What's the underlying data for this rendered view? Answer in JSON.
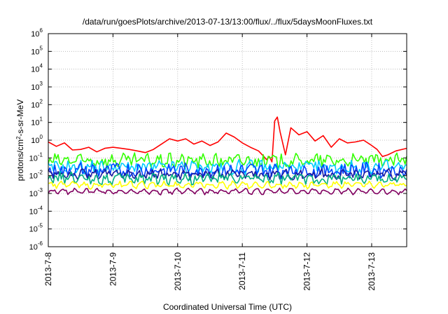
{
  "chart_data": {
    "type": "line",
    "title": "/data/run/goesPlots/archive/2013-07-13/13:00/flux/../flux/5daysMoonFluxes.txt",
    "xlabel": "Coordinated Universal Time (UTC)",
    "ylabel": {
      "base": "protons/cm",
      "exp": "2",
      "rest": "-s-sr-MeV"
    },
    "y_scale": "log",
    "ylim": [
      1e-06,
      1000000.0
    ],
    "xlim": [
      "2013-07-08",
      "2013-07-13 13:00"
    ],
    "x_ticks": [
      "2013-7-8",
      "2013-7-9",
      "2013-7-10",
      "2013-7-11",
      "2013-7-12",
      "2013-7-13"
    ],
    "y_ticks": [
      {
        "base": "10",
        "exp": "-6"
      },
      {
        "base": "10",
        "exp": "-5"
      },
      {
        "base": "10",
        "exp": "-4"
      },
      {
        "base": "10",
        "exp": "-3"
      },
      {
        "base": "10",
        "exp": "-2"
      },
      {
        "base": "10",
        "exp": "-1"
      },
      {
        "base": "10",
        "exp": "0"
      },
      {
        "base": "10",
        "exp": "1"
      },
      {
        "base": "10",
        "exp": "2"
      },
      {
        "base": "10",
        "exp": "3"
      },
      {
        "base": "10",
        "exp": "4"
      },
      {
        "base": "10",
        "exp": "5"
      },
      {
        "base": "10",
        "exp": "6"
      }
    ],
    "grid": true,
    "legend": "none",
    "series": [
      {
        "color": "#ff0000",
        "points": [
          [
            "2013-07-08 00:00",
            0.8
          ],
          [
            "2013-07-08 03:00",
            0.45
          ],
          [
            "2013-07-08 06:00",
            0.7
          ],
          [
            "2013-07-08 09:00",
            0.28
          ],
          [
            "2013-07-08 12:00",
            0.3
          ],
          [
            "2013-07-08 15:00",
            0.4
          ],
          [
            "2013-07-08 18:00",
            0.22
          ],
          [
            "2013-07-08 21:00",
            0.35
          ],
          [
            "2013-07-09 00:00",
            0.4
          ],
          [
            "2013-07-09 03:00",
            0.35
          ],
          [
            "2013-07-09 06:00",
            0.3
          ],
          [
            "2013-07-09 09:00",
            0.25
          ],
          [
            "2013-07-09 12:00",
            0.2
          ],
          [
            "2013-07-09 15:00",
            0.3
          ],
          [
            "2013-07-09 18:00",
            0.6
          ],
          [
            "2013-07-09 21:00",
            1.2
          ],
          [
            "2013-07-10 00:00",
            0.9
          ],
          [
            "2013-07-10 03:00",
            1.2
          ],
          [
            "2013-07-10 06:00",
            0.6
          ],
          [
            "2013-07-10 09:00",
            0.9
          ],
          [
            "2013-07-10 12:00",
            0.5
          ],
          [
            "2013-07-10 15:00",
            0.8
          ],
          [
            "2013-07-10 18:00",
            2.5
          ],
          [
            "2013-07-10 21:00",
            1.5
          ],
          [
            "2013-07-11 00:00",
            0.7
          ],
          [
            "2013-07-11 03:00",
            0.4
          ],
          [
            "2013-07-11 06:00",
            0.25
          ],
          [
            "2013-07-11 08:00",
            0.12
          ],
          [
            "2013-07-11 09:00",
            0.08
          ],
          [
            "2013-07-11 10:00",
            0.12
          ],
          [
            "2013-07-11 11:00",
            0.06
          ],
          [
            "2013-07-11 12:00",
            12
          ],
          [
            "2013-07-11 13:00",
            20
          ],
          [
            "2013-07-11 14:00",
            3
          ],
          [
            "2013-07-11 16:00",
            0.15
          ],
          [
            "2013-07-11 18:00",
            5
          ],
          [
            "2013-07-11 21:00",
            2
          ],
          [
            "2013-07-12 00:00",
            3
          ],
          [
            "2013-07-12 03:00",
            0.9
          ],
          [
            "2013-07-12 06:00",
            1.8
          ],
          [
            "2013-07-12 09:00",
            0.4
          ],
          [
            "2013-07-12 12:00",
            1.2
          ],
          [
            "2013-07-12 15:00",
            0.7
          ],
          [
            "2013-07-12 18:00",
            0.8
          ],
          [
            "2013-07-12 21:00",
            1.0
          ],
          [
            "2013-07-13 00:00",
            0.5
          ],
          [
            "2013-07-13 02:00",
            0.3
          ],
          [
            "2013-07-13 04:00",
            0.12
          ],
          [
            "2013-07-13 06:00",
            0.15
          ],
          [
            "2013-07-13 09:00",
            0.25
          ],
          [
            "2013-07-13 13:00",
            0.35
          ]
        ]
      },
      {
        "color": "#33ff00",
        "level": 0.07,
        "amp": 0.34
      },
      {
        "color": "#00ccff",
        "level": 0.03,
        "amp": 0.32
      },
      {
        "color": "#0044ff",
        "level": 0.02,
        "amp": 0.38
      },
      {
        "color": "#1a1aa0",
        "level": 0.012,
        "amp": 0.22
      },
      {
        "color": "#00b080",
        "level": 0.007,
        "amp": 0.28
      },
      {
        "color": "#ffff00",
        "level": 0.003,
        "amp": 0.12
      },
      {
        "color": "#800060",
        "level": 0.0013,
        "amp": 0.08
      }
    ]
  }
}
